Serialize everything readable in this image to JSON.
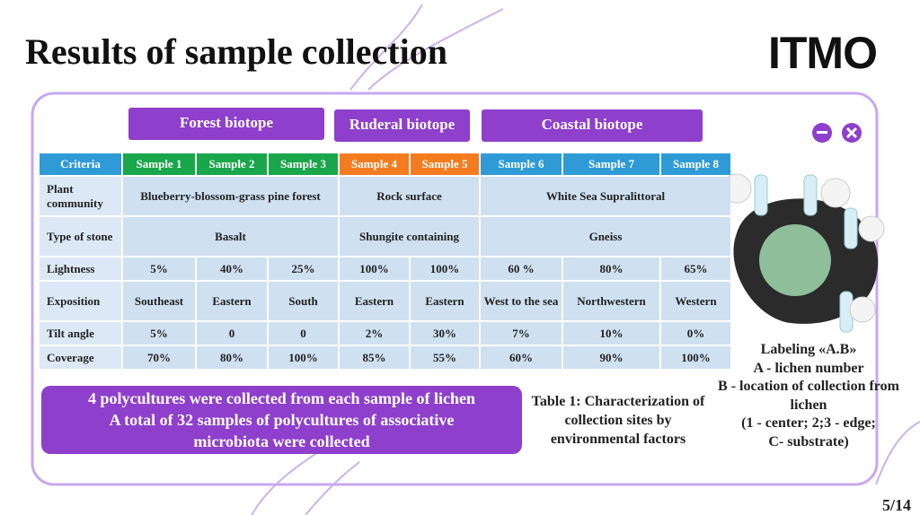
{
  "title": "Results of sample collection",
  "logo": "ITMO",
  "biotopes": [
    "Forest biotope",
    "Ruderal biotope",
    "Coastal biotope"
  ],
  "table": {
    "header": [
      "Criteria",
      "Sample 1",
      "Sample 2",
      "Sample 3",
      "Sample 4",
      "Sample 5",
      "Sample 6",
      "Sample 7",
      "Sample 8"
    ],
    "rows": [
      {
        "label": "Plant community",
        "cells": [
          "Blueberry-blossom-grass pine forest",
          "Rock surface",
          "White Sea Supralittoral"
        ]
      },
      {
        "label": "Type of stone",
        "cells": [
          "Basalt",
          "Shungite containing",
          "Gneiss"
        ]
      },
      {
        "label": "Lightness",
        "cells": [
          "5%",
          "40%",
          "25%",
          "100%",
          "100%",
          "60 %",
          "80%",
          "65%"
        ]
      },
      {
        "label": "Exposition",
        "cells": [
          "Southeast",
          "Eastern",
          "South",
          "Eastern",
          "Eastern",
          "West to the sea",
          "Northwestern",
          "Western"
        ]
      },
      {
        "label": "Tilt angle",
        "cells": [
          "5%",
          "0",
          "0",
          "2%",
          "30%",
          "7%",
          "10%",
          "0%"
        ]
      },
      {
        "label": "Coverage",
        "cells": [
          "70%",
          "80%",
          "100%",
          "85%",
          "55%",
          "60%",
          "90%",
          "100%"
        ]
      }
    ]
  },
  "summary": [
    "4 polycultures were collected from each sample of lichen",
    "A total of 32 samples of polycultures of associative",
    "microbiota were collected"
  ],
  "caption": "Table 1: Characterization of collection sites by environmental factors",
  "labeling": [
    "Labeling «A.B»",
    "A - lichen number",
    "B - location of collection from lichen",
    "(1 - center; 2;3 - edge;",
    "C- substrate)"
  ],
  "page": "5/14"
}
